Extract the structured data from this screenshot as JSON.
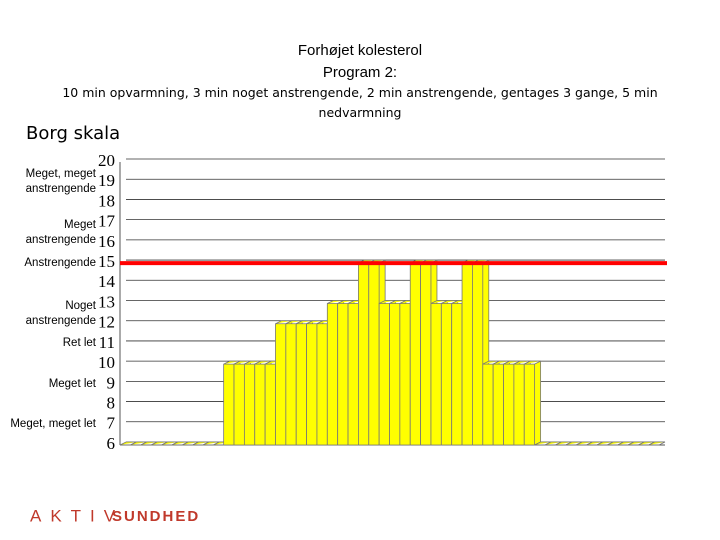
{
  "chart_data": {
    "type": "bar",
    "title": "Forhøjet kolesterol",
    "subtitle": "Program 2:",
    "description": "10 min opvarmning, 3 min noget anstrengende, 2 min anstrengende, gentages 3 gange, 5 min nedvarmning",
    "ylabel": "Borg skala",
    "values": [
      6,
      6,
      6,
      6,
      6,
      6,
      6,
      6,
      6,
      6,
      10,
      10,
      10,
      10,
      10,
      12,
      12,
      12,
      12,
      12,
      13,
      13,
      13,
      15,
      15,
      13,
      13,
      13,
      15,
      15,
      13,
      13,
      13,
      15,
      15,
      10,
      10,
      10,
      10,
      10,
      6,
      6,
      6,
      6,
      6,
      6,
      6,
      6,
      6,
      6,
      6,
      6
    ],
    "color": "#ffff00",
    "ylim": [
      6,
      20
    ],
    "yticks": [
      6,
      7,
      8,
      9,
      10,
      11,
      12,
      13,
      14,
      15,
      16,
      17,
      18,
      19,
      20
    ],
    "grid": true,
    "reference_line": {
      "value": 15,
      "color": "#ff0000"
    },
    "y_annotations": [
      {
        "label": "Meget, meget anstrengende",
        "value": 19
      },
      {
        "label": "Meget anstrengende",
        "value": 16.5
      },
      {
        "label": "Anstrengende",
        "value": 15
      },
      {
        "label": "Noget anstrengende",
        "value": 12.5
      },
      {
        "label": "Ret let",
        "value": 11
      },
      {
        "label": "Meget let",
        "value": 9
      },
      {
        "label": "Meget, meget let",
        "value": 7
      }
    ],
    "logo": {
      "word1": "AKTIV",
      "word2": "SUNDHED"
    }
  }
}
